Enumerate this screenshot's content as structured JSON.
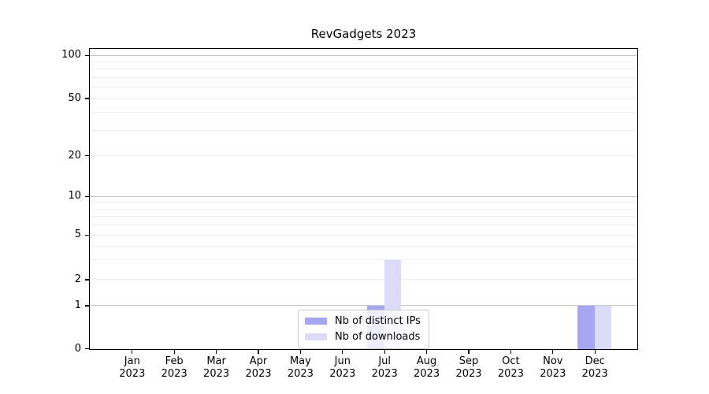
{
  "chart_data": {
    "type": "bar",
    "title": "RevGadgets 2023",
    "categories": [
      "Jan 2023",
      "Feb 2023",
      "Mar 2023",
      "Apr 2023",
      "May 2023",
      "Jun 2023",
      "Jul 2023",
      "Aug 2023",
      "Sep 2023",
      "Oct 2023",
      "Nov 2023",
      "Dec 2023"
    ],
    "x_tick_months": [
      "Jan",
      "Feb",
      "Mar",
      "Apr",
      "May",
      "Jun",
      "Jul",
      "Aug",
      "Sep",
      "Oct",
      "Nov",
      "Dec"
    ],
    "x_tick_year": "2023",
    "series": [
      {
        "name": "Nb of distinct IPs",
        "color": "#a6a6f2",
        "values": [
          0,
          0,
          0,
          0,
          0,
          0,
          1,
          0,
          0,
          0,
          0,
          1
        ]
      },
      {
        "name": "Nb of downloads",
        "color": "#dbdbf8",
        "values": [
          0,
          0,
          0,
          0,
          0,
          0,
          3,
          0,
          0,
          0,
          0,
          1
        ]
      }
    ],
    "xlabel": "",
    "ylabel": "",
    "yaxis": {
      "scale": "symlog (linear 0-1, log 1-100)",
      "tick_values": [
        0,
        1,
        2,
        5,
        10,
        20,
        50,
        100
      ],
      "tick_labels": [
        "0",
        "1",
        "2",
        "5",
        "10",
        "20",
        "50",
        "100"
      ],
      "major_gridlines": [
        1,
        10,
        100
      ],
      "minor_gridlines": [
        2,
        3,
        4,
        5,
        6,
        7,
        8,
        9,
        20,
        30,
        40,
        50,
        60,
        70,
        80,
        90
      ],
      "ylim": [
        0,
        110
      ]
    },
    "grid": "horizontal",
    "legend": {
      "position": "lower center",
      "entries": [
        "Nb of distinct IPs",
        "Nb of downloads"
      ]
    }
  }
}
